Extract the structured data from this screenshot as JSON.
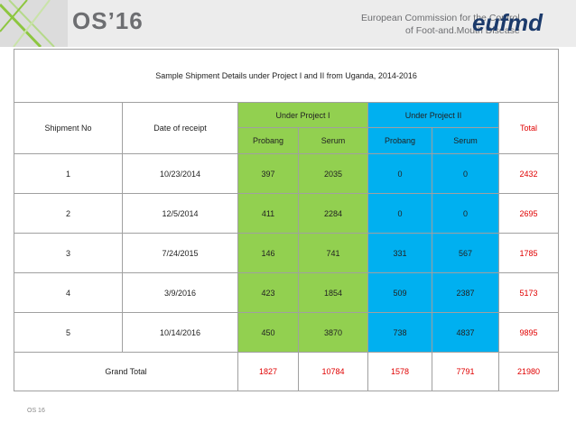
{
  "header": {
    "logo": "OS’16",
    "organization_line1": "European Commission for the Control",
    "organization_line2": "of Foot-and.Mouth Disease",
    "brand": "eufmd"
  },
  "table": {
    "title": "Sample Shipment Details under Project I and II from Uganda, 2014-2016",
    "headers": {
      "shipment": "Shipment No",
      "date": "Date of receipt",
      "project1": "Under Project I",
      "project2": "Under Project II",
      "total": "Total"
    },
    "subheaders": [
      "Probang",
      "Serum",
      "Probang",
      "Serum"
    ],
    "rows": [
      [
        1,
        "10/23/2014",
        397,
        2035,
        0,
        0,
        2432
      ],
      [
        2,
        "12/5/2014",
        411,
        2284,
        0,
        0,
        2695
      ],
      [
        3,
        "7/24/2015",
        146,
        741,
        331,
        567,
        1785
      ],
      [
        4,
        "3/9/2016",
        423,
        1854,
        509,
        2387,
        5173
      ],
      [
        5,
        "10/14/2016",
        450,
        3870,
        738,
        4837,
        9895
      ]
    ],
    "grand_total": {
      "label": "Grand Total",
      "values": [
        1827,
        10784,
        1578,
        7791,
        21980
      ]
    }
  },
  "footer": "OS 16"
}
